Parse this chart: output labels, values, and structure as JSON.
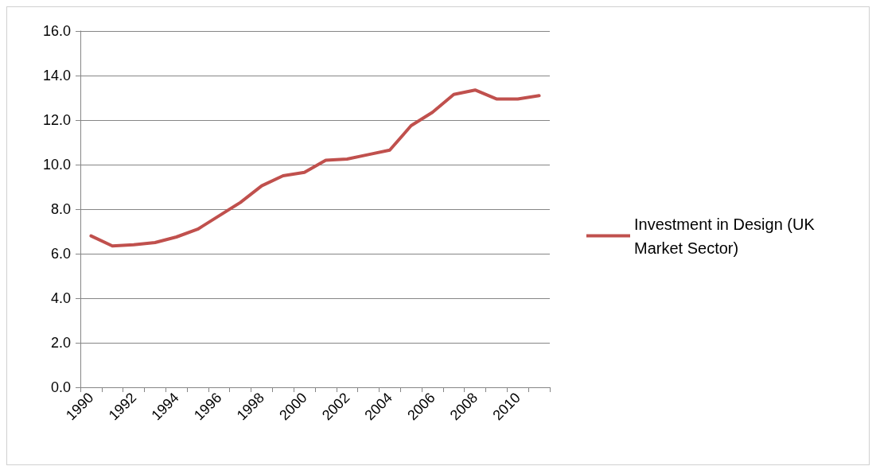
{
  "chart_data": {
    "type": "line",
    "categories": [
      "1990",
      null,
      "1992",
      null,
      "1994",
      null,
      "1996",
      null,
      "1998",
      null,
      "2000",
      null,
      "2002",
      null,
      "2004",
      null,
      "2006",
      null,
      "2008",
      null,
      "2010",
      null
    ],
    "series": [
      {
        "name": "Investment in Design (UK Market Sector)",
        "color": "#c0504d",
        "values": [
          6.8,
          6.35,
          6.4,
          6.5,
          6.75,
          7.1,
          7.7,
          8.3,
          9.05,
          9.5,
          9.65,
          10.2,
          10.25,
          10.45,
          10.65,
          11.75,
          12.35,
          13.15,
          13.35,
          12.95,
          12.95,
          13.1
        ]
      }
    ],
    "ylim": [
      0,
      16
    ],
    "yticks": [
      {
        "value": 0,
        "label": "0.0"
      },
      {
        "value": 2,
        "label": "2.0"
      },
      {
        "value": 4,
        "label": "4.0"
      },
      {
        "value": 6,
        "label": "6.0"
      },
      {
        "value": 8,
        "label": "8.0"
      },
      {
        "value": 10,
        "label": "10.0"
      },
      {
        "value": 12,
        "label": "12.0"
      },
      {
        "value": 14,
        "label": "14.0"
      },
      {
        "value": 16,
        "label": "16.0"
      }
    ],
    "grid": "y",
    "legend": "right",
    "marker": "none",
    "line_style": "solid"
  }
}
